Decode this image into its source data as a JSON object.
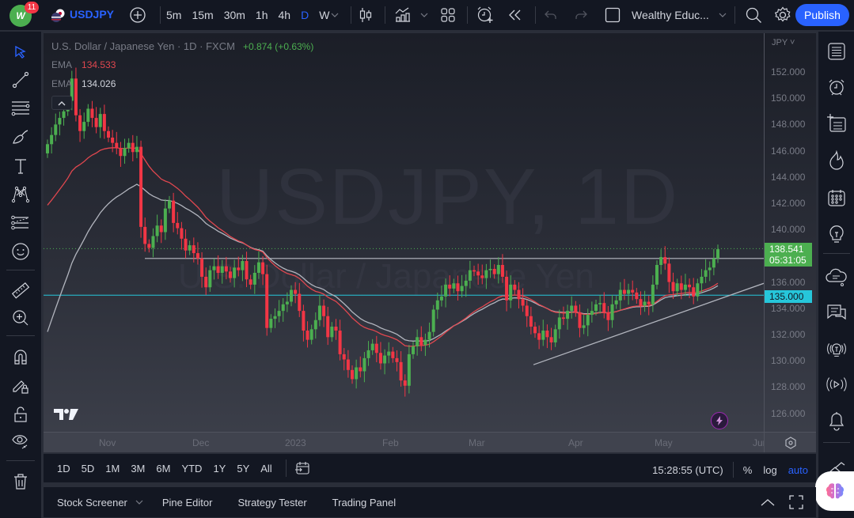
{
  "topbar": {
    "notification_count": "11",
    "logo_text": "W",
    "symbol": "USDJPY",
    "intervals": [
      "5m",
      "15m",
      "30m",
      "1h",
      "4h",
      "D",
      "W"
    ],
    "active_interval": "D",
    "layout_name": "Wealthy Educ...",
    "publish_label": "Publish"
  },
  "legend": {
    "title": "U.S. Dollar / Japanese Yen · 1D · FXCM",
    "change": "+0.874 (+0.63%)",
    "ema1_label": "EMA",
    "ema1_value": "134.533",
    "ema2_label": "EMA",
    "ema2_value": "134.026"
  },
  "watermark": {
    "main": "USDJPY, 1D",
    "sub": "U.S. Dollar / Japanese Yen"
  },
  "pricescale": {
    "currency": "JPY",
    "labels": [
      "152.000",
      "150.000",
      "148.000",
      "146.000",
      "144.000",
      "142.000",
      "140.000",
      "138.000",
      "136.000",
      "134.000",
      "132.000",
      "130.000",
      "128.000",
      "126.000"
    ],
    "last_price": "138.541",
    "countdown": "05:31:05",
    "hline_price": "135.000"
  },
  "timescale": {
    "labels": [
      "Nov",
      "Dec",
      "2023",
      "Feb",
      "Mar",
      "Apr",
      "May",
      "Jun"
    ]
  },
  "rangebar": {
    "ranges": [
      "1D",
      "5D",
      "1M",
      "3M",
      "6M",
      "YTD",
      "1Y",
      "5Y",
      "All"
    ],
    "clock": "15:28:55 (UTC)",
    "percent_label": "%",
    "log_label": "log",
    "auto_label": "auto"
  },
  "bottombar": {
    "tabs": [
      "Stock Screener",
      "Pine Editor",
      "Strategy Tester",
      "Trading Panel"
    ]
  },
  "colors": {
    "up": "#4caf50",
    "down": "#f23645",
    "accent": "#2962ff",
    "ema_fast": "#e0474f",
    "ema_slow": "#b2b5be",
    "hline": "#26c6da"
  },
  "chart_data": {
    "type": "candlestick",
    "title": "U.S. Dollar / Japanese Yen · 1D · FXCM",
    "ylim": [
      124.5,
      153.5
    ],
    "x_labels": [
      "Nov",
      "Dec",
      "2023",
      "Feb",
      "Mar",
      "Apr",
      "May",
      "Jun"
    ],
    "last_price": 138.541,
    "horizontal_lines": [
      135.0,
      137.9
    ],
    "ema_fast_last": 134.533,
    "ema_slow_last": 134.026
  }
}
